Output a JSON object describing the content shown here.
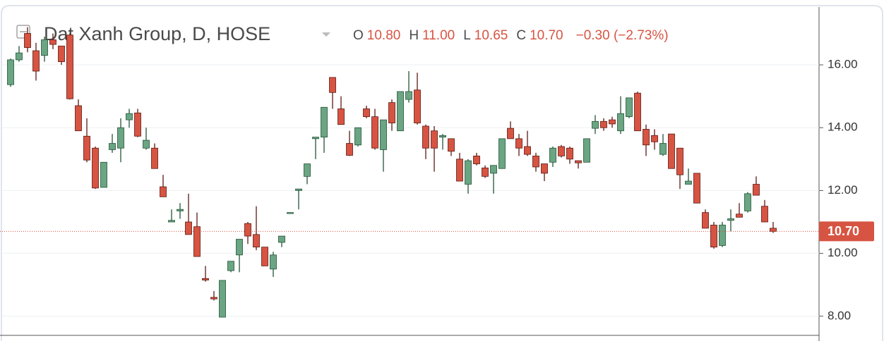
{
  "chart_data": {
    "type": "candlestick",
    "title": "Dat Xanh Group, D, HOSE",
    "ohlc_legend": [
      {
        "label": "O",
        "value": "10.80"
      },
      {
        "label": "H",
        "value": "11.00"
      },
      {
        "label": "L",
        "value": "10.65"
      },
      {
        "label": "C",
        "value": "10.70"
      }
    ],
    "change": "−0.30 (−2.73%)",
    "up_color": "#6ba583",
    "up_border": "#225437",
    "down_color": "#d75442",
    "down_border": "#5b1a13",
    "open": [
      15.37,
      16.16,
      17.0,
      16.45,
      16.3,
      16.8,
      16.6,
      16.95,
      14.7,
      13.73,
      13.35,
      12.1,
      13.3,
      13.35,
      14.25,
      14.47,
      13.35,
      13.35,
      12.12,
      11.0,
      11.35,
      11.0,
      10.85,
      9.2,
      8.6,
      7.97,
      9.45,
      9.95,
      10.95,
      10.6,
      10.2,
      9.5,
      10.35,
      11.27,
      12.0,
      12.45,
      13.65,
      13.7,
      15.6,
      14.6,
      13.5,
      13.45,
      14.6,
      14.35,
      13.3,
      14.8,
      13.9,
      14.9,
      15.2,
      14.05,
      13.9,
      13.7,
      13.65,
      13.0,
      12.2,
      13.1,
      12.72,
      12.55,
      12.7,
      13.98,
      13.65,
      13.4,
      13.1,
      12.85,
      12.9,
      13.4,
      13.35,
      12.95,
      12.9,
      13.98,
      14.2,
      14.25,
      13.9,
      14.35,
      15.1,
      13.95,
      13.75,
      13.15,
      13.8,
      13.35,
      12.2,
      12.55,
      11.3,
      10.9,
      10.25,
      11.05,
      11.25,
      11.35,
      12.2,
      11.5,
      10.8
    ],
    "high": [
      16.2,
      16.6,
      17.2,
      16.7,
      16.9,
      17.0,
      16.6,
      17.0,
      14.9,
      14.3,
      13.4,
      12.9,
      13.8,
      14.3,
      14.6,
      14.6,
      14.0,
      13.5,
      12.5,
      11.4,
      11.6,
      11.9,
      11.3,
      9.6,
      8.8,
      9.14,
      9.75,
      10.45,
      11.0,
      11.5,
      10.2,
      10.05,
      10.55,
      11.3,
      12.05,
      12.85,
      13.7,
      14.65,
      15.6,
      15.0,
      13.9,
      14.0,
      14.7,
      14.6,
      14.25,
      14.9,
      15.15,
      15.8,
      15.75,
      14.1,
      14.05,
      13.8,
      13.65,
      13.2,
      13.0,
      13.2,
      12.8,
      12.8,
      13.65,
      14.2,
      13.8,
      13.9,
      13.2,
      12.85,
      13.4,
      13.45,
      13.4,
      12.95,
      13.65,
      14.4,
      14.3,
      14.35,
      15.0,
      14.95,
      15.15,
      14.1,
      13.95,
      13.8,
      13.8,
      13.35,
      12.7,
      12.55,
      11.4,
      11.0,
      11.0,
      11.4,
      11.6,
      11.95,
      12.45,
      11.7,
      11.0
    ],
    "low": [
      15.3,
      16.1,
      16.4,
      15.5,
      16.1,
      16.5,
      16.0,
      14.9,
      13.9,
      12.9,
      12.05,
      12.1,
      13.2,
      12.9,
      14.0,
      13.7,
      13.3,
      12.7,
      11.8,
      11.0,
      11.1,
      10.6,
      9.9,
      9.1,
      8.5,
      7.97,
      9.4,
      9.4,
      10.3,
      10.1,
      9.6,
      9.25,
      10.2,
      11.27,
      11.4,
      12.2,
      13.0,
      13.2,
      14.6,
      14.1,
      13.1,
      13.4,
      14.3,
      13.3,
      12.6,
      13.9,
      13.9,
      14.8,
      14.1,
      13.0,
      12.6,
      13.3,
      13.1,
      12.3,
      11.9,
      12.8,
      12.4,
      11.9,
      12.7,
      13.65,
      13.1,
      13.1,
      12.6,
      12.3,
      12.75,
      13.05,
      12.85,
      12.7,
      12.9,
      13.8,
      13.9,
      14.0,
      13.8,
      14.3,
      13.9,
      13.1,
      13.3,
      13.1,
      12.7,
      12.05,
      12.2,
      11.6,
      10.8,
      10.15,
      10.2,
      10.7,
      11.15,
      11.3,
      11.85,
      11.0,
      10.65
    ],
    "close": [
      16.16,
      16.38,
      16.55,
      15.8,
      16.8,
      16.65,
      16.1,
      14.92,
      13.9,
      12.97,
      12.08,
      12.9,
      13.5,
      14.0,
      14.45,
      13.73,
      13.6,
      12.7,
      11.8,
      11.05,
      11.4,
      10.6,
      9.9,
      9.15,
      8.55,
      9.14,
      9.75,
      10.45,
      10.55,
      10.2,
      9.6,
      9.95,
      10.55,
      11.3,
      12.05,
      12.85,
      13.7,
      14.65,
      15.12,
      14.1,
      13.12,
      14.0,
      14.35,
      13.35,
      14.25,
      14.15,
      15.15,
      15.15,
      14.15,
      13.35,
      13.35,
      13.75,
      13.25,
      12.3,
      12.95,
      12.85,
      12.45,
      12.8,
      13.65,
      13.65,
      13.35,
      13.15,
      12.75,
      12.55,
      13.35,
      13.1,
      13.0,
      12.88,
      13.65,
      14.2,
      14.0,
      14.12,
      14.45,
      14.95,
      13.9,
      13.45,
      13.55,
      13.5,
      12.7,
      12.5,
      12.3,
      11.6,
      10.8,
      10.2,
      10.9,
      11.1,
      11.15,
      11.9,
      11.85,
      11.0,
      10.7
    ],
    "ylim": [
      7.39,
      17.84
    ],
    "yticks": [
      {
        "value": 8,
        "label": "8.00"
      },
      {
        "value": 10,
        "label": "10.00"
      },
      {
        "value": 12,
        "label": "12.00"
      },
      {
        "value": 14,
        "label": "14.00"
      },
      {
        "value": 16,
        "label": "16.00"
      }
    ],
    "last_price": {
      "value": 10.7,
      "label": "10.70",
      "color": "#d75442"
    },
    "grid": true
  }
}
